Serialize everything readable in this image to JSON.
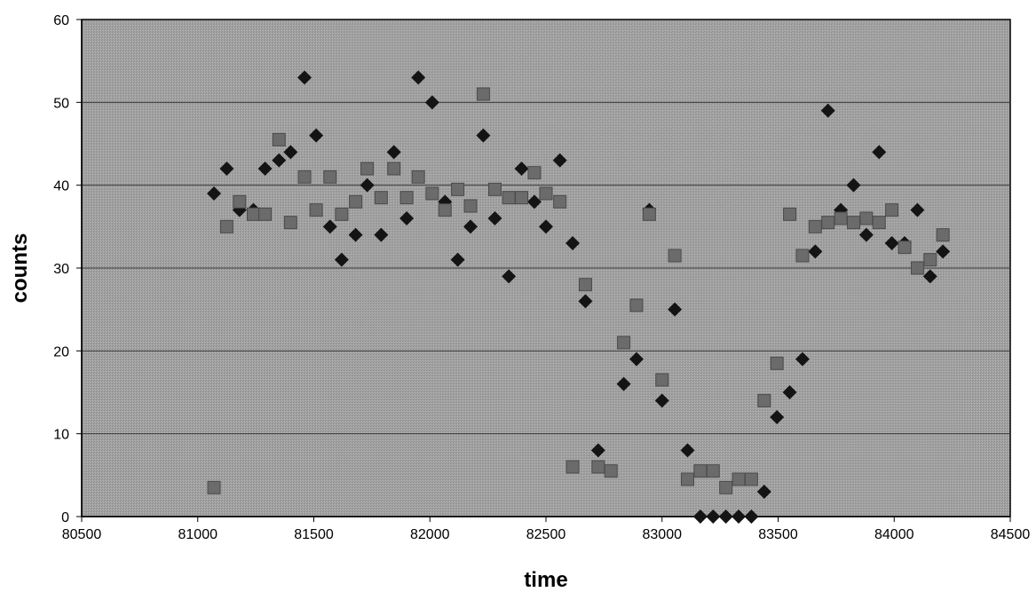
{
  "chart_data": {
    "type": "scatter",
    "xlabel": "time",
    "ylabel": "counts",
    "xlim": [
      80500,
      84500
    ],
    "ylim": [
      0,
      60
    ],
    "x_ticks": [
      80500,
      81000,
      81500,
      82000,
      82500,
      83000,
      83500,
      84000,
      84500
    ],
    "y_ticks": [
      0,
      10,
      20,
      30,
      40,
      50,
      60
    ],
    "grid": "horizontal",
    "legend": "none",
    "colors": {
      "plot_background": "#9e9e9e",
      "diamond_series": "#141414",
      "square_series": "#6b6b6b",
      "gridline": "#3a3a3a"
    },
    "series": [
      {
        "marker": "diamond",
        "points": [
          [
            81070,
            39
          ],
          [
            81125,
            42
          ],
          [
            81180,
            37
          ],
          [
            81240,
            37
          ],
          [
            81290,
            42
          ],
          [
            81350,
            43
          ],
          [
            81400,
            44
          ],
          [
            81460,
            53
          ],
          [
            81510,
            46
          ],
          [
            81570,
            35
          ],
          [
            81620,
            31
          ],
          [
            81680,
            34
          ],
          [
            81730,
            40
          ],
          [
            81790,
            34
          ],
          [
            81845,
            44
          ],
          [
            81900,
            36
          ],
          [
            81950,
            53
          ],
          [
            82010,
            50
          ],
          [
            82065,
            38
          ],
          [
            82120,
            31
          ],
          [
            82175,
            35
          ],
          [
            82230,
            46
          ],
          [
            82280,
            36
          ],
          [
            82340,
            29
          ],
          [
            82395,
            42
          ],
          [
            82450,
            38
          ],
          [
            82500,
            35
          ],
          [
            82560,
            43
          ],
          [
            82615,
            33
          ],
          [
            82670,
            26
          ],
          [
            82725,
            8
          ],
          [
            82835,
            16
          ],
          [
            82890,
            19
          ],
          [
            82945,
            37
          ],
          [
            83000,
            14
          ],
          [
            83055,
            25
          ],
          [
            83110,
            8
          ],
          [
            83165,
            0
          ],
          [
            83220,
            0
          ],
          [
            83275,
            0
          ],
          [
            83330,
            0
          ],
          [
            83385,
            0
          ],
          [
            83440,
            3
          ],
          [
            83495,
            12
          ],
          [
            83550,
            15
          ],
          [
            83605,
            19
          ],
          [
            83660,
            32
          ],
          [
            83715,
            49
          ],
          [
            83770,
            37
          ],
          [
            83825,
            40
          ],
          [
            83880,
            34
          ],
          [
            83935,
            44
          ],
          [
            83990,
            33
          ],
          [
            84045,
            33
          ],
          [
            84100,
            37
          ],
          [
            84155,
            29
          ],
          [
            84210,
            32
          ]
        ]
      },
      {
        "marker": "square",
        "points": [
          [
            81070,
            3.5
          ],
          [
            81125,
            35
          ],
          [
            81180,
            38
          ],
          [
            81240,
            36.5
          ],
          [
            81290,
            36.5
          ],
          [
            81350,
            45.5
          ],
          [
            81400,
            35.5
          ],
          [
            81460,
            41
          ],
          [
            81510,
            37
          ],
          [
            81570,
            41
          ],
          [
            81620,
            36.5
          ],
          [
            81680,
            38
          ],
          [
            81730,
            42
          ],
          [
            81790,
            38.5
          ],
          [
            81845,
            42
          ],
          [
            81900,
            38.5
          ],
          [
            81950,
            41
          ],
          [
            82010,
            39
          ],
          [
            82065,
            37
          ],
          [
            82120,
            39.5
          ],
          [
            82175,
            37.5
          ],
          [
            82230,
            51
          ],
          [
            82280,
            39.5
          ],
          [
            82340,
            38.5
          ],
          [
            82395,
            38.5
          ],
          [
            82450,
            41.5
          ],
          [
            82500,
            39
          ],
          [
            82560,
            38
          ],
          [
            82615,
            6
          ],
          [
            82670,
            28
          ],
          [
            82725,
            6
          ],
          [
            82780,
            5.5
          ],
          [
            82835,
            21
          ],
          [
            82890,
            25.5
          ],
          [
            82945,
            36.5
          ],
          [
            83000,
            16.5
          ],
          [
            83055,
            31.5
          ],
          [
            83110,
            4.5
          ],
          [
            83165,
            5.5
          ],
          [
            83220,
            5.5
          ],
          [
            83275,
            3.5
          ],
          [
            83330,
            4.5
          ],
          [
            83385,
            4.5
          ],
          [
            83440,
            14
          ],
          [
            83495,
            18.5
          ],
          [
            83550,
            36.5
          ],
          [
            83605,
            31.5
          ],
          [
            83660,
            35
          ],
          [
            83715,
            35.5
          ],
          [
            83770,
            36
          ],
          [
            83825,
            35.5
          ],
          [
            83880,
            36
          ],
          [
            83935,
            35.5
          ],
          [
            83990,
            37
          ],
          [
            84045,
            32.5
          ],
          [
            84100,
            30
          ],
          [
            84155,
            31
          ],
          [
            84210,
            34
          ]
        ]
      }
    ]
  }
}
